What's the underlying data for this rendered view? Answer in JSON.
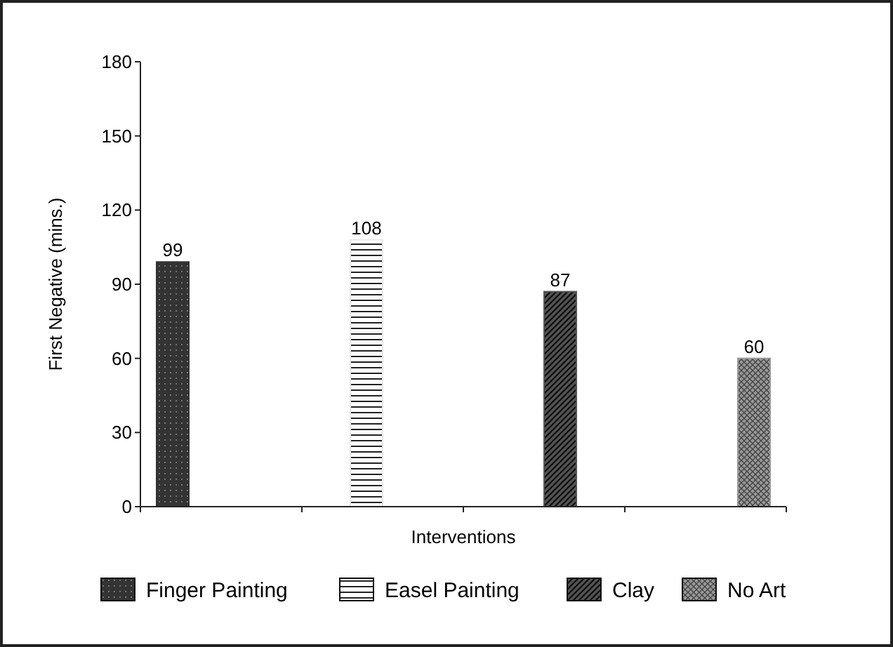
{
  "chart_data": {
    "type": "bar",
    "xlabel": "Interventions",
    "ylabel": "First Negative (mins.)",
    "categories": [
      null,
      null,
      null,
      null
    ],
    "series": [
      {
        "name": "Finger Painting",
        "color": "#333333",
        "values": [
          99,
          null,
          null,
          null
        ]
      },
      {
        "name": "Easel Painting",
        "color": "#e8e8e8",
        "values": [
          null,
          108,
          null,
          null
        ]
      },
      {
        "name": "Clay",
        "color": "#555555",
        "values": [
          null,
          null,
          87,
          null
        ]
      },
      {
        "name": "No Art",
        "color": "#999999",
        "values": [
          null,
          null,
          null,
          60
        ]
      }
    ],
    "ylim": [
      0,
      180
    ],
    "yticks": [
      0,
      30,
      60,
      90,
      120,
      150,
      180
    ],
    "data_labels": true,
    "legend": "bottom",
    "tick_labels": "y",
    "grid": false
  }
}
